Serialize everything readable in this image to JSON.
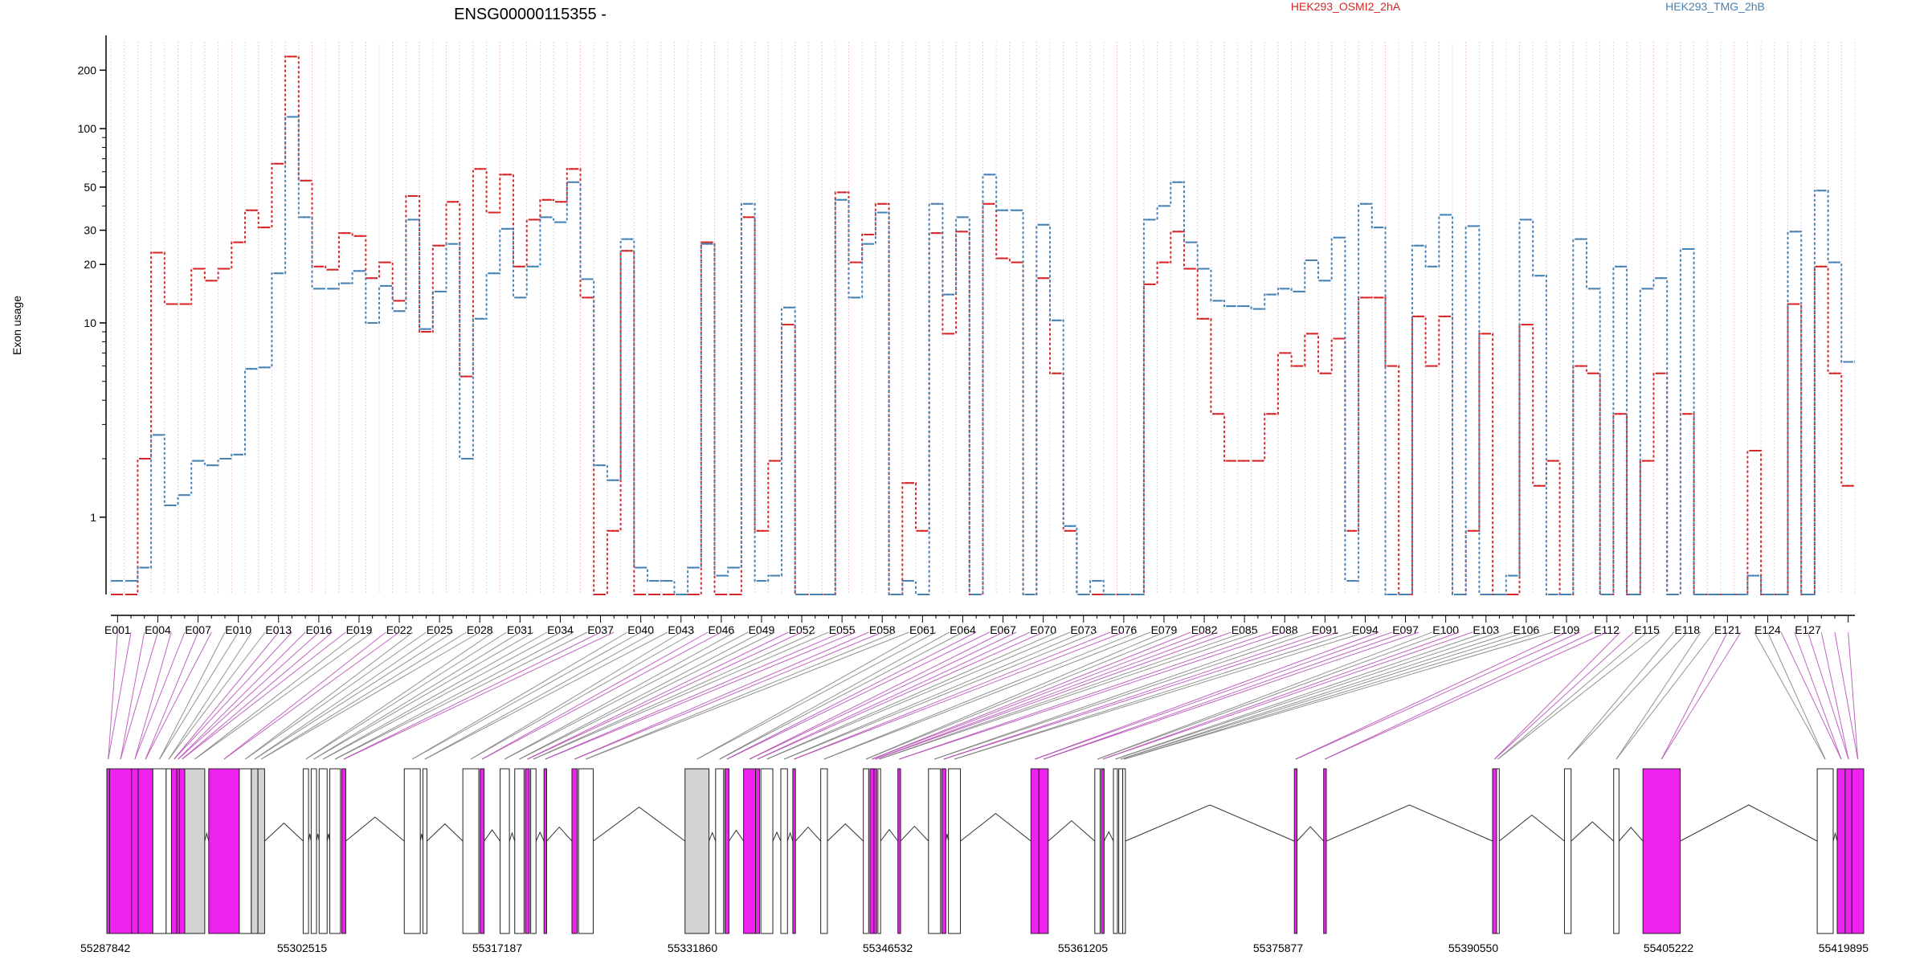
{
  "chart_data": {
    "type": "line",
    "title": "ENSG00000115355 -",
    "ylabel": "Exon usage",
    "xlabel": "",
    "yscale": "log",
    "ylim": [
      0.4,
      280
    ],
    "yticks": [
      1,
      10,
      20,
      30,
      50,
      100,
      200
    ],
    "grid": true,
    "legend_position": "top",
    "series": [
      {
        "name": "HEK293_OSMI2_2hA",
        "color": "#d62728",
        "values": [
          0.4,
          0.4,
          2.0,
          23,
          12.5,
          12.5,
          19,
          16.5,
          19,
          26,
          38,
          31,
          66,
          235,
          54,
          19.5,
          18.8,
          29,
          28,
          17,
          20.5,
          13,
          45,
          9,
          25,
          42,
          5.3,
          62,
          37,
          58,
          19.5,
          34,
          43,
          42,
          62,
          13.5,
          0.4,
          0.85,
          23.5,
          0.4,
          0.4,
          0.4,
          0.4,
          0.4,
          26,
          0.4,
          0.4,
          35,
          0.85,
          1.95,
          9.8,
          0.4,
          0.4,
          0.4,
          47,
          20.5,
          28.5,
          41,
          0.4,
          1.5,
          0.85,
          29,
          8.8,
          29.5,
          0.4,
          41,
          21.5,
          20.5,
          0.4,
          17,
          5.5,
          0.85,
          0.4,
          0.4,
          0.4,
          0.4,
          0.4,
          15.8,
          20.5,
          29.5,
          19,
          10.5,
          3.4,
          1.95,
          1.95,
          1.95,
          3.4,
          7,
          6,
          8.8,
          5.5,
          8.3,
          0.85,
          13.5,
          13.5,
          6,
          0.4,
          10.8,
          6,
          10.8,
          0.4,
          0.85,
          8.8,
          0.4,
          0.4,
          9.8,
          1.45,
          1.95,
          0.4,
          6,
          5.5,
          0.4,
          3.4,
          0.4,
          1.95,
          5.5,
          0.4,
          3.4,
          0.4,
          0.4,
          0.4,
          0.4,
          2.2,
          0.4,
          0.4,
          12.5,
          0.4,
          19.5,
          5.5,
          1.45
        ]
      },
      {
        "name": "HEK293_TMG_2hB",
        "color": "#4682b4",
        "values": [
          0.47,
          0.47,
          0.55,
          2.65,
          1.15,
          1.3,
          1.95,
          1.85,
          2.0,
          2.1,
          5.8,
          5.9,
          18,
          115,
          35,
          15,
          15,
          16,
          18.5,
          10,
          15.5,
          11.5,
          34,
          9.3,
          14.5,
          25.5,
          2.0,
          10.5,
          18,
          30.5,
          13.5,
          19.5,
          35,
          33,
          53,
          16.8,
          1.85,
          1.55,
          27,
          0.55,
          0.47,
          0.47,
          0.4,
          0.55,
          25.5,
          0.5,
          0.55,
          41,
          0.47,
          0.5,
          12,
          0.4,
          0.4,
          0.4,
          43,
          13.5,
          25.5,
          37,
          0.4,
          0.47,
          0.4,
          41,
          14,
          35,
          0.4,
          58,
          38,
          38,
          0.4,
          32,
          10.3,
          0.9,
          0.4,
          0.47,
          0.4,
          0.4,
          0.4,
          34,
          40,
          53,
          26,
          19,
          13,
          12.2,
          12.2,
          11.8,
          14,
          15,
          14.5,
          21,
          16.5,
          27.5,
          0.47,
          41,
          31,
          0.4,
          0.4,
          25,
          19.5,
          36,
          0.4,
          31.5,
          0.4,
          0.4,
          0.5,
          34,
          17.5,
          0.4,
          0.4,
          27,
          15,
          0.4,
          19.5,
          0.4,
          15,
          17,
          0.4,
          24,
          0.4,
          0.4,
          0.4,
          0.4,
          0.5,
          0.4,
          0.4,
          29.5,
          0.4,
          48,
          20.5,
          6.3
        ]
      }
    ],
    "exon_labels": [
      "E001",
      "E004",
      "E007",
      "E010",
      "E013",
      "E016",
      "E019",
      "E022",
      "E025",
      "E028",
      "E031",
      "E034",
      "E037",
      "E040",
      "E043",
      "E046",
      "E049",
      "E052",
      "E055",
      "E058",
      "E061",
      "E064",
      "E067",
      "E070",
      "E073",
      "E076",
      "E079",
      "E082",
      "E085",
      "E088",
      "E091",
      "E094",
      "E097",
      "E100",
      "E103",
      "E106",
      "E109",
      "E112",
      "E115",
      "E118",
      "E121",
      "E124",
      "E127"
    ],
    "genomic_coordinates": [
      "55287842",
      "55302515",
      "55317187",
      "55331860",
      "55346532",
      "55361205",
      "55375877",
      "55390550",
      "55405222",
      "55419895"
    ],
    "gene_model": {
      "start": 55287842,
      "end": 55419895,
      "highlight_color": "#ee22ee",
      "gray_color": "#d3d3d3",
      "intron_color": "#333333",
      "exons": [
        {
          "s": 55287842,
          "e": 55288050,
          "c": "m"
        },
        {
          "s": 55288050,
          "e": 55289700,
          "c": "m"
        },
        {
          "s": 55289700,
          "e": 55290200,
          "c": "m"
        },
        {
          "s": 55290200,
          "e": 55291300,
          "c": "m"
        },
        {
          "s": 55291300,
          "e": 55292300,
          "c": "w"
        },
        {
          "s": 55292300,
          "e": 55292700,
          "c": "w"
        },
        {
          "s": 55292700,
          "e": 55293100,
          "c": "m"
        },
        {
          "s": 55293100,
          "e": 55293300,
          "c": "m"
        },
        {
          "s": 55293300,
          "e": 55293700,
          "c": "m"
        },
        {
          "s": 55293700,
          "e": 55295200,
          "c": "g"
        },
        {
          "s": 55295500,
          "e": 55297800,
          "c": "m"
        },
        {
          "s": 55297800,
          "e": 55298700,
          "c": "w"
        },
        {
          "s": 55298700,
          "e": 55299200,
          "c": "g"
        },
        {
          "s": 55299200,
          "e": 55299700,
          "c": "g"
        },
        {
          "s": 55302600,
          "e": 55303000,
          "c": "w"
        },
        {
          "s": 55303200,
          "e": 55303600,
          "c": "w"
        },
        {
          "s": 55303800,
          "e": 55304400,
          "c": "w"
        },
        {
          "s": 55304600,
          "e": 55305400,
          "c": "w"
        },
        {
          "s": 55305500,
          "e": 55305800,
          "c": "m"
        },
        {
          "s": 55310200,
          "e": 55311400,
          "c": "w"
        },
        {
          "s": 55311600,
          "e": 55311900,
          "c": "w"
        },
        {
          "s": 55314600,
          "e": 55315800,
          "c": "w"
        },
        {
          "s": 55315900,
          "e": 55316200,
          "c": "m"
        },
        {
          "s": 55317400,
          "e": 55318100,
          "c": "w"
        },
        {
          "s": 55318500,
          "e": 55319200,
          "c": "w"
        },
        {
          "s": 55319300,
          "e": 55319600,
          "c": "m"
        },
        {
          "s": 55319700,
          "e": 55320100,
          "c": "w"
        },
        {
          "s": 55320700,
          "e": 55320900,
          "c": "m"
        },
        {
          "s": 55322800,
          "e": 55323200,
          "c": "m"
        },
        {
          "s": 55323300,
          "e": 55324400,
          "c": "w"
        },
        {
          "s": 55331300,
          "e": 55333100,
          "c": "g"
        },
        {
          "s": 55333600,
          "e": 55334200,
          "c": "w"
        },
        {
          "s": 55334300,
          "e": 55334600,
          "c": "m"
        },
        {
          "s": 55335700,
          "e": 55336600,
          "c": "m"
        },
        {
          "s": 55336600,
          "e": 55336900,
          "c": "m"
        },
        {
          "s": 55337000,
          "e": 55337900,
          "c": "w"
        },
        {
          "s": 55338500,
          "e": 55339000,
          "c": "w"
        },
        {
          "s": 55339400,
          "e": 55339600,
          "c": "m"
        },
        {
          "s": 55341500,
          "e": 55342000,
          "c": "w"
        },
        {
          "s": 55344700,
          "e": 55345100,
          "c": "w"
        },
        {
          "s": 55345200,
          "e": 55345500,
          "c": "m"
        },
        {
          "s": 55345500,
          "e": 55345700,
          "c": "m"
        },
        {
          "s": 55345800,
          "e": 55346000,
          "c": "w"
        },
        {
          "s": 55347300,
          "e": 55347500,
          "c": "m"
        },
        {
          "s": 55349600,
          "e": 55350500,
          "c": "w"
        },
        {
          "s": 55350600,
          "e": 55350900,
          "c": "m"
        },
        {
          "s": 55351100,
          "e": 55352000,
          "c": "w"
        },
        {
          "s": 55357300,
          "e": 55357900,
          "c": "m"
        },
        {
          "s": 55357900,
          "e": 55358600,
          "c": "m"
        },
        {
          "s": 55362100,
          "e": 55362500,
          "c": "w"
        },
        {
          "s": 55362600,
          "e": 55362800,
          "c": "m"
        },
        {
          "s": 55363500,
          "e": 55363800,
          "c": "w"
        },
        {
          "s": 55363900,
          "e": 55364200,
          "c": "w"
        },
        {
          "s": 55364200,
          "e": 55364400,
          "c": "w"
        },
        {
          "s": 55377100,
          "e": 55377300,
          "c": "m"
        },
        {
          "s": 55379300,
          "e": 55379500,
          "c": "m"
        },
        {
          "s": 55392000,
          "e": 55392300,
          "c": "m"
        },
        {
          "s": 55392300,
          "e": 55392500,
          "c": "w"
        },
        {
          "s": 55397400,
          "e": 55397900,
          "c": "w"
        },
        {
          "s": 55401100,
          "e": 55401500,
          "c": "w"
        },
        {
          "s": 55403300,
          "e": 55406100,
          "c": "m"
        },
        {
          "s": 55416400,
          "e": 55417600,
          "c": "w"
        },
        {
          "s": 55417900,
          "e": 55418500,
          "c": "m"
        },
        {
          "s": 55418500,
          "e": 55419000,
          "c": "m"
        },
        {
          "s": 55419000,
          "e": 55419895,
          "c": "m"
        }
      ]
    }
  }
}
